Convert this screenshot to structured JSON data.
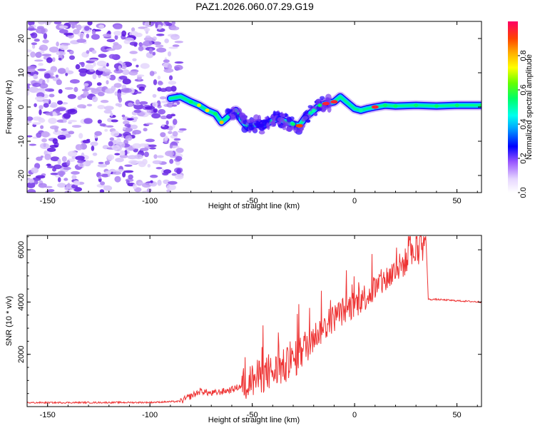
{
  "title": "PAZ1.2026.060.07.29.G19",
  "chart_data": [
    {
      "type": "heatmap",
      "name": "spectrogram",
      "xlabel": "Height of straight line (km)",
      "ylabel": "Frequency (Hz)",
      "xlim": [
        -160,
        62
      ],
      "ylim": [
        -25,
        25
      ],
      "xticks": [
        -150,
        -100,
        -50,
        0,
        50
      ],
      "xtick_labels": [
        "-150",
        "-100",
        "-50",
        "0",
        "50"
      ],
      "yticks": [
        -20,
        -10,
        0,
        10,
        20
      ],
      "ytick_labels": [
        "-20",
        "-10",
        "0",
        "10",
        "20"
      ],
      "noise_region_x": [
        -160,
        -85
      ],
      "ridge": {
        "x": [
          -90,
          -85,
          -80,
          -76,
          -72,
          -68,
          -65,
          -62,
          -58,
          -55,
          -52,
          -48,
          -45,
          -42,
          -38,
          -35,
          -30,
          -27,
          -24,
          -20,
          -17,
          -14,
          -10,
          -7,
          -4,
          0,
          3,
          6,
          10,
          15,
          20,
          30,
          40,
          50,
          62
        ],
        "y": [
          2.5,
          3,
          1.5,
          0.5,
          -1,
          -2,
          -4.5,
          -3,
          -1,
          -4,
          -6,
          -5,
          -5.5,
          -4.5,
          -3.5,
          -4,
          -5,
          -5.5,
          -3,
          -1,
          0.5,
          1,
          1.5,
          3,
          1.5,
          -0.5,
          -1,
          -0.5,
          0,
          0.5,
          0.3,
          0.5,
          0.3,
          0.5,
          0.5
        ],
        "amplitude": [
          0.3,
          0.35,
          0.55,
          0.7,
          0.75,
          0.55,
          0.8,
          0.5,
          0.4,
          0.35,
          0.4,
          0.35,
          0.4,
          0.35,
          0.35,
          0.4,
          0.55,
          0.9,
          0.45,
          0.5,
          0.55,
          0.95,
          0.95,
          0.4,
          0.45,
          0.45,
          0.5,
          0.45,
          0.95,
          0.55,
          0.55,
          0.55,
          0.55,
          0.55,
          0.55
        ]
      },
      "colorbar": {
        "label": "Normalized spectral amplitude",
        "range": [
          0,
          1
        ],
        "ticks": [
          0.0,
          0.2,
          0.4,
          0.6,
          0.8
        ],
        "tick_labels": [
          "0.0",
          "0.2",
          "0.4",
          "0.6",
          "0.8"
        ]
      }
    },
    {
      "type": "line",
      "name": "snr",
      "xlabel": "Height of straight line (km)",
      "ylabel": "SNR (10 * v/v)",
      "xlim": [
        -160,
        62
      ],
      "ylim": [
        0,
        6550
      ],
      "xticks": [
        -150,
        -100,
        -50,
        0,
        50
      ],
      "xtick_labels": [
        "-150",
        "-100",
        "-50",
        "0",
        "50"
      ],
      "yticks": [
        2000,
        4000,
        6000
      ],
      "ytick_labels": [
        "2000",
        "4000",
        "6000"
      ],
      "color": "#ee3333",
      "trend": {
        "x": [
          -160,
          -100,
          -85,
          -80,
          -75,
          -70,
          -60,
          -55,
          -50,
          -45,
          -40,
          -35,
          -30,
          -25,
          -20,
          -15,
          -10,
          -5,
          0,
          10,
          20,
          30,
          35,
          36,
          40,
          50,
          62
        ],
        "y": [
          150,
          160,
          200,
          400,
          600,
          500,
          650,
          800,
          1000,
          1200,
          1300,
          1500,
          1700,
          2200,
          2700,
          3000,
          3400,
          3700,
          3900,
          4500,
          5200,
          5900,
          6200,
          4100,
          4100,
          4050,
          4000
        ]
      }
    }
  ]
}
